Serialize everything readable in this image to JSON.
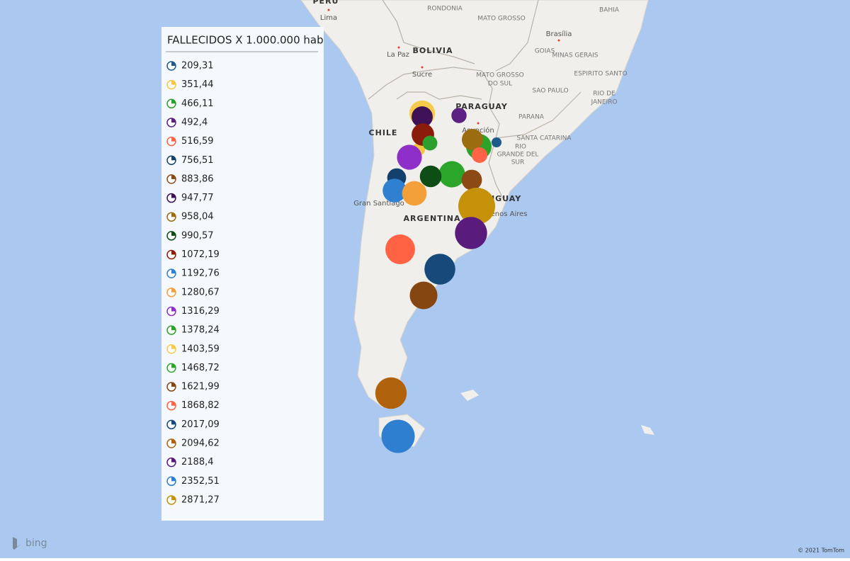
{
  "map": {
    "legend": {
      "title": "FALLECIDOS X 1.000.000 hab",
      "entries": [
        {
          "value": 209.31,
          "label": "209,31",
          "color": "#1f5a8c"
        },
        {
          "value": 351.44,
          "label": "351,44",
          "color": "#f6c640"
        },
        {
          "value": 466.11,
          "label": "466,11",
          "color": "#2ca02c"
        },
        {
          "value": 492.4,
          "label": "492,4",
          "color": "#5c2183"
        },
        {
          "value": 516.59,
          "label": "516,59",
          "color": "#ff6347"
        },
        {
          "value": 756.51,
          "label": "756,51",
          "color": "#14406e"
        },
        {
          "value": 883.86,
          "label": "883,86",
          "color": "#8b4a14"
        },
        {
          "value": 947.77,
          "label": "947,77",
          "color": "#3f1157"
        },
        {
          "value": 958.04,
          "label": "958,04",
          "color": "#9c6c10"
        },
        {
          "value": 990.57,
          "label": "990,57",
          "color": "#0f4d17"
        },
        {
          "value": 1072.19,
          "label": "1072,19",
          "color": "#8b1c0c"
        },
        {
          "value": 1192.76,
          "label": "1192,76",
          "color": "#2f80d1"
        },
        {
          "value": 1280.67,
          "label": "1280,67",
          "color": "#f4a03a"
        },
        {
          "value": 1316.29,
          "label": "1316,29",
          "color": "#8e2fc9"
        },
        {
          "value": 1378.24,
          "label": "1378,24",
          "color": "#2ea32a"
        },
        {
          "value": 1403.59,
          "label": "1403,59",
          "color": "#f7cb4a"
        },
        {
          "value": 1468.72,
          "label": "1468,72",
          "color": "#2ca62a"
        },
        {
          "value": 1621.99,
          "label": "1621,99",
          "color": "#864612"
        },
        {
          "value": 1868.82,
          "label": "1868,82",
          "color": "#ff6344"
        },
        {
          "value": 2017.09,
          "label": "2017,09",
          "color": "#17497a"
        },
        {
          "value": 2094.62,
          "label": "2094,62",
          "color": "#b0620d"
        },
        {
          "value": 2188.4,
          "label": "2188,4",
          "color": "#591c7d"
        },
        {
          "value": 2352.51,
          "label": "2352,51",
          "color": "#2f7fd0"
        },
        {
          "value": 2871.27,
          "label": "2871,27",
          "color": "#c49108"
        }
      ]
    },
    "place_labels": [
      "PERU",
      "Lima",
      "RONDONIA",
      "MATO GROSSO",
      "BAHIA",
      "Brasília",
      "La Paz",
      "BOLIVIA",
      "GOIAS",
      "MINAS GERAIS",
      "Sucre",
      "MATO GROSSO",
      "DO SUL",
      "ESPIRITO SANTO",
      "SAO PAULO",
      "RIO DE",
      "JANEIRO",
      "PARAGUAY",
      "PARANA",
      "CHILE",
      "Asunción",
      "SANTA CATARINA",
      "RIO",
      "GRANDE DEL",
      "SUR",
      "Gran Santiago",
      "URUGUAY",
      "Buenos Aires",
      "ARGENTINA"
    ],
    "attribution": {
      "logo": "bing",
      "copyright": "© 2021 TomTom"
    }
  }
}
